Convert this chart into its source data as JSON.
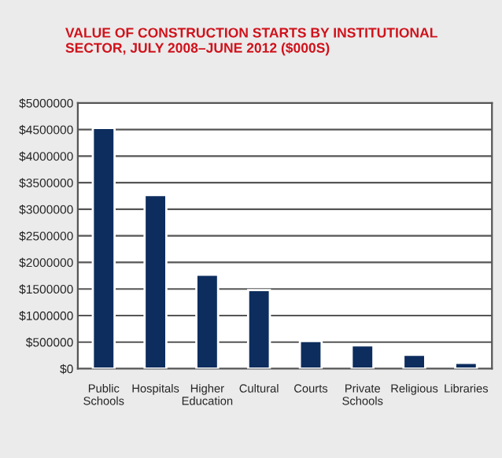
{
  "chart_data": {
    "type": "bar",
    "title": "VALUE OF CONSTRUCTION STARTS BY INSTITUTIONAL SECTOR, JULY 2008–JUNE 2012 ($000S)",
    "categories": [
      "Public\nSchools",
      "Hospitals",
      "Higher\nEducation",
      "Cultural",
      "Courts",
      "Private\nSchools",
      "Religious",
      "Libraries"
    ],
    "values": [
      4530000,
      3270000,
      1770000,
      1480000,
      520000,
      440000,
      260000,
      110000
    ],
    "color": "#0d2d5e",
    "ylim": [
      0,
      5000000
    ],
    "yticks": [
      {
        "value": 0,
        "label": "$0"
      },
      {
        "value": 500000,
        "label": "$500000"
      },
      {
        "value": 1000000,
        "label": "$1000000"
      },
      {
        "value": 1500000,
        "label": "$1500000"
      },
      {
        "value": 2000000,
        "label": "$2000000"
      },
      {
        "value": 2500000,
        "label": "$2500000"
      },
      {
        "value": 3000000,
        "label": "$3000000"
      },
      {
        "value": 3500000,
        "label": "$3500000"
      },
      {
        "value": 4000000,
        "label": "$4000000"
      },
      {
        "value": 4500000,
        "label": "$4500000"
      },
      {
        "value": 5000000,
        "label": "$5000000"
      }
    ],
    "grid": "y"
  }
}
